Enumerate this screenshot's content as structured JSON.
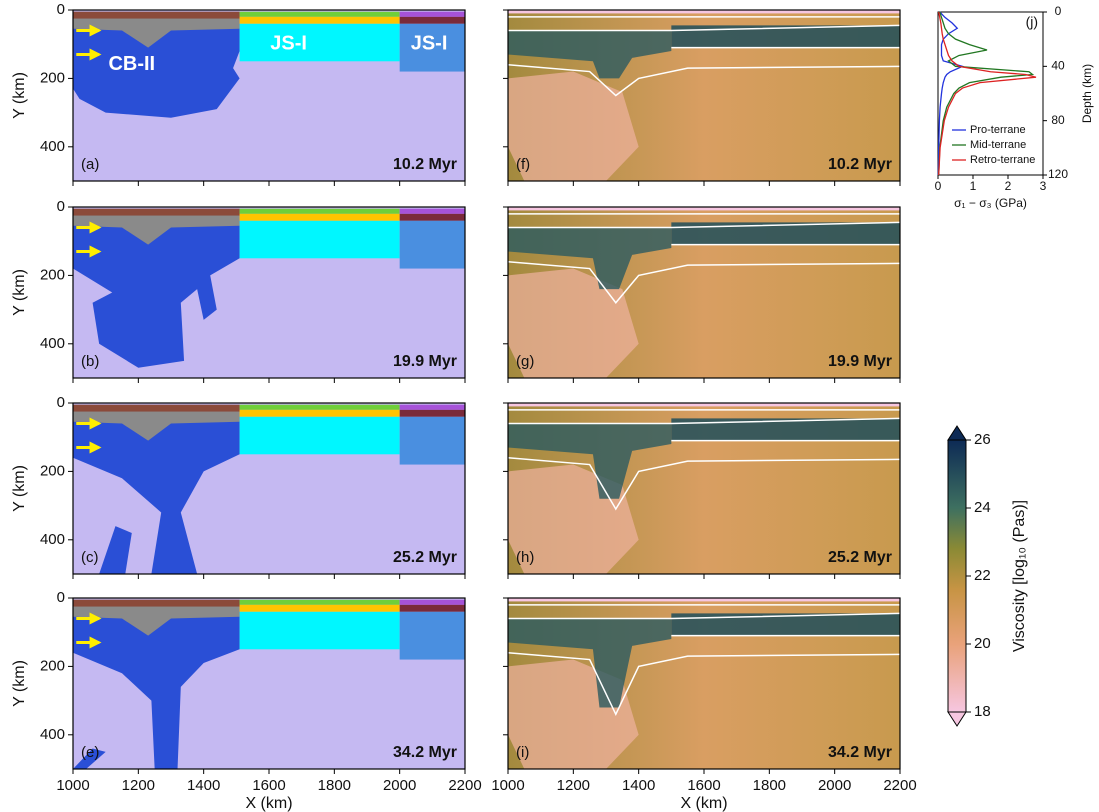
{
  "chart_data": [
    {
      "type": "model",
      "label": "(a)",
      "time": "10.2 Myr",
      "annotations": [
        "CB-II",
        "JS-I",
        "JS-I"
      ],
      "xlim": [
        1000,
        2200
      ],
      "ylim": [
        0,
        500
      ],
      "xticks": [
        1000,
        1200,
        1400,
        1600,
        1800,
        2000,
        2200
      ],
      "yticks": [
        0,
        200,
        400
      ],
      "ylabel": "Y (km)"
    },
    {
      "type": "model",
      "label": "(b)",
      "time": "19.9 Myr",
      "xlim": [
        1000,
        2200
      ],
      "ylim": [
        0,
        500
      ],
      "xticks": [
        1000,
        1200,
        1400,
        1600,
        1800,
        2000,
        2200
      ],
      "yticks": [
        0,
        200,
        400
      ],
      "ylabel": "Y (km)"
    },
    {
      "type": "model",
      "label": "(c)",
      "time": "25.2 Myr",
      "xlim": [
        1000,
        2200
      ],
      "ylim": [
        0,
        500
      ],
      "xticks": [
        1000,
        1200,
        1400,
        1600,
        1800,
        2000,
        2200
      ],
      "yticks": [
        0,
        200,
        400
      ],
      "ylabel": "Y (km)"
    },
    {
      "type": "model",
      "label": "(e)",
      "time": "34.2 Myr",
      "xlim": [
        1000,
        2200
      ],
      "ylim": [
        0,
        500
      ],
      "xticks": [
        1000,
        1200,
        1400,
        1600,
        1800,
        2000,
        2200
      ],
      "yticks": [
        0,
        200,
        400
      ],
      "ylabel": "Y (km)",
      "xlabel": "X (km)"
    },
    {
      "type": "model",
      "label": "(f)",
      "time": "10.2 Myr",
      "xlim": [
        1000,
        2200
      ],
      "ylim": [
        0,
        500
      ],
      "xticks": [
        1000,
        1200,
        1400,
        1600,
        1800,
        2000,
        2200
      ],
      "yticks": [
        0,
        200,
        400
      ]
    },
    {
      "type": "model",
      "label": "(g)",
      "time": "19.9 Myr",
      "xlim": [
        1000,
        2200
      ],
      "ylim": [
        0,
        500
      ],
      "xticks": [
        1000,
        1200,
        1400,
        1600,
        1800,
        2000,
        2200
      ],
      "yticks": [
        0,
        200,
        400
      ]
    },
    {
      "type": "model",
      "label": "(h)",
      "time": "25.2 Myr",
      "xlim": [
        1000,
        2200
      ],
      "ylim": [
        0,
        500
      ],
      "xticks": [
        1000,
        1200,
        1400,
        1600,
        1800,
        2000,
        2200
      ],
      "yticks": [
        0,
        200,
        400
      ]
    },
    {
      "type": "model",
      "label": "(i)",
      "time": "34.2 Myr",
      "xlim": [
        1000,
        2200
      ],
      "ylim": [
        0,
        500
      ],
      "xticks": [
        1000,
        1200,
        1400,
        1600,
        1800,
        2000,
        2200
      ],
      "yticks": [
        0,
        200,
        400
      ],
      "xlabel": "X (km)"
    },
    {
      "type": "line",
      "label": "(j)",
      "xlabel": "σ₁ − σ₃ (GPa)",
      "ylabel": "Depth (km)",
      "xlim": [
        0,
        3
      ],
      "ylim": [
        0,
        120
      ],
      "xticks": [
        0,
        1,
        2,
        3
      ],
      "yticks": [
        0,
        40,
        80,
        120
      ],
      "y": [
        0,
        4,
        8,
        12,
        16,
        20,
        24,
        28,
        32,
        36,
        40,
        44,
        46,
        48,
        52,
        56,
        60,
        70,
        80,
        100,
        120
      ],
      "series": [
        {
          "name": "Pro-terrane",
          "color": "#2233dd",
          "values": [
            0.05,
            0.2,
            0.4,
            0.55,
            0.3,
            0.15,
            0.1,
            0.1,
            0.1,
            0.15,
            0.7,
            0.35,
            0.25,
            0.2,
            0.15,
            0.12,
            0.1,
            0.06,
            0.04,
            0.02,
            0.01
          ]
        },
        {
          "name": "Mid-terrane",
          "color": "#227722",
          "values": [
            0.05,
            0.1,
            0.15,
            0.2,
            0.3,
            0.5,
            0.9,
            1.4,
            0.6,
            0.3,
            0.5,
            2.6,
            2.7,
            1.8,
            0.9,
            0.6,
            0.45,
            0.25,
            0.15,
            0.05,
            0.02
          ]
        },
        {
          "name": "Retro-terrane",
          "color": "#dd2222",
          "values": [
            0.02,
            0.05,
            0.08,
            0.1,
            0.12,
            0.15,
            0.2,
            0.25,
            0.3,
            0.4,
            0.6,
            1.5,
            2.5,
            2.8,
            1.2,
            0.7,
            0.5,
            0.3,
            0.18,
            0.06,
            0.02
          ]
        }
      ]
    },
    {
      "type": "colorbar",
      "label": "Viscosity [log₁₀ (Pas)]",
      "range": [
        18,
        26
      ],
      "ticks": [
        18,
        20,
        22,
        24,
        26
      ]
    }
  ]
}
